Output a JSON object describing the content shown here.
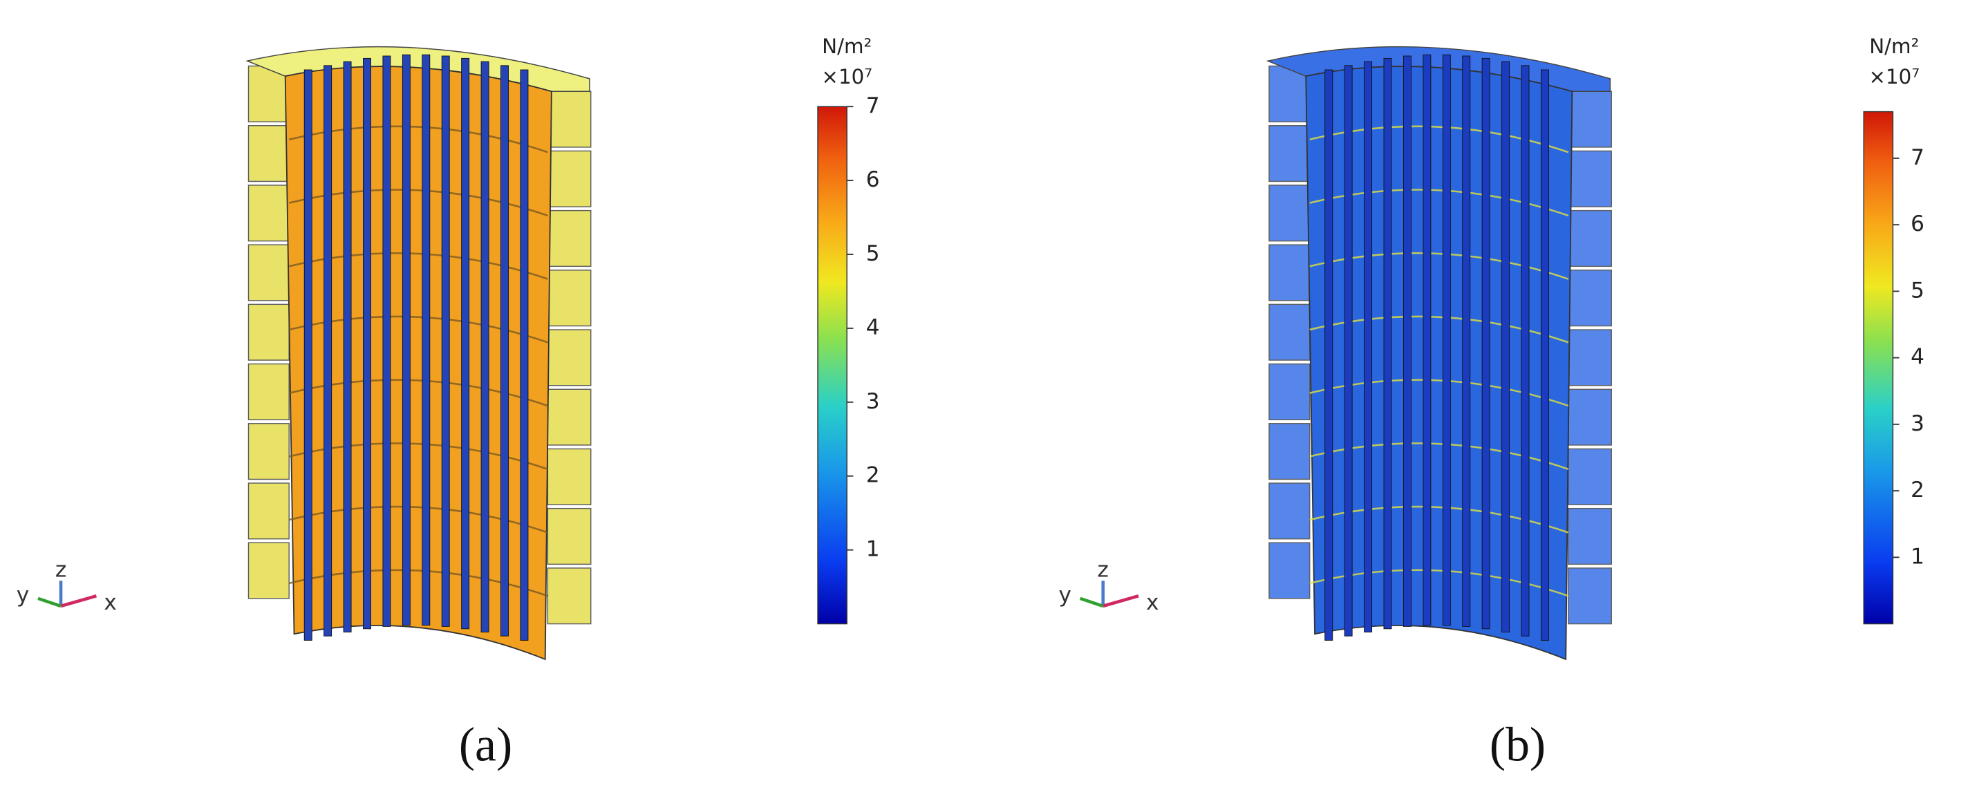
{
  "panels": [
    {
      "caption": "(a)",
      "colorbar": {
        "unit": "N/m²",
        "multiplier": "×10⁷",
        "range": [
          0,
          7
        ],
        "ticks": [
          1,
          2,
          3,
          4,
          5,
          6,
          7
        ]
      },
      "axes": {
        "x": "x",
        "y": "y",
        "z": "z"
      }
    },
    {
      "caption": "(b)",
      "colorbar": {
        "unit": "N/m²",
        "multiplier": "×10⁷",
        "range": [
          0,
          7.7
        ],
        "ticks": [
          1,
          2,
          3,
          4,
          5,
          6,
          7
        ]
      },
      "axes": {
        "x": "x",
        "y": "y",
        "z": "z"
      }
    }
  ]
}
